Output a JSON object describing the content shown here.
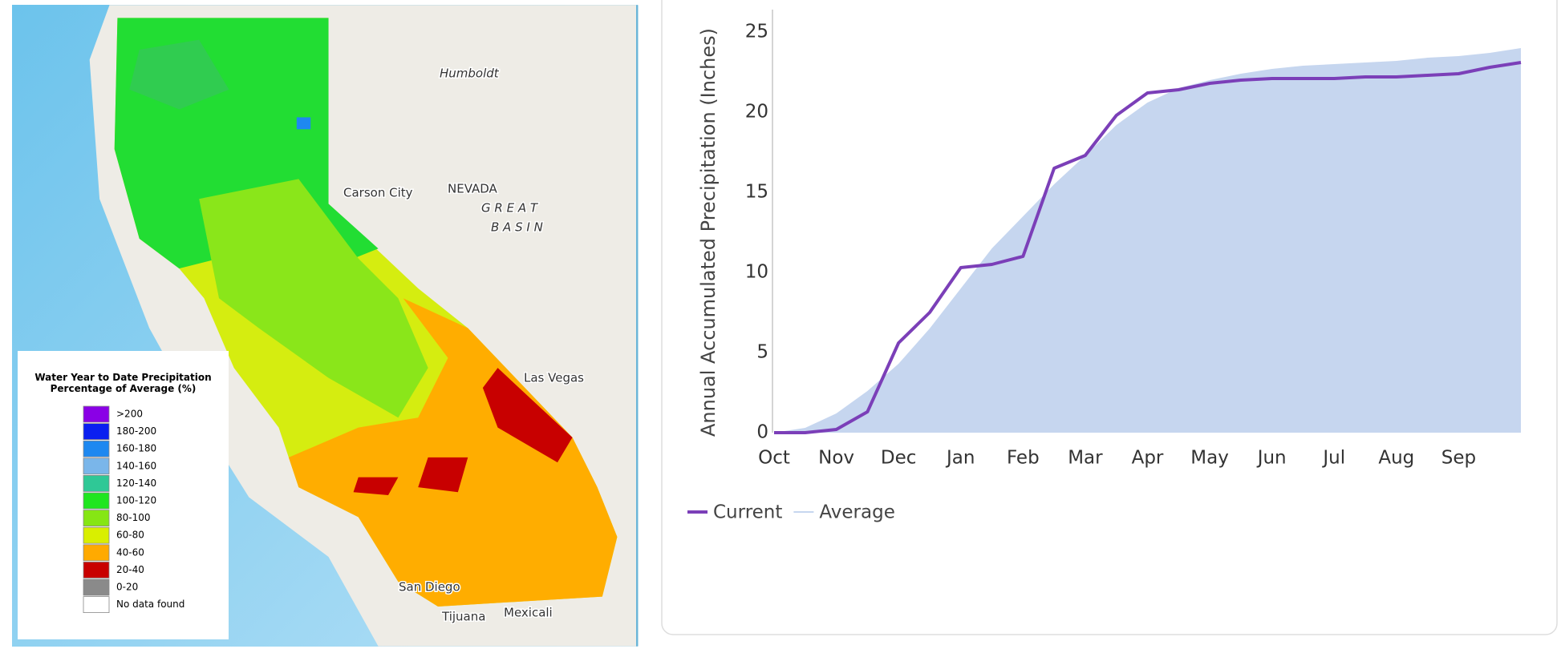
{
  "map": {
    "labels": [
      "Humboldt",
      "Carson City",
      "NEVADA",
      "G R E A T",
      "B A S I N",
      "Las Vegas",
      "San Diego",
      "Tijuana",
      "Mexicali"
    ],
    "legend": {
      "title": "Water Year to Date Precipitation Percentage of Average (%)",
      "items": [
        {
          "label": ">200",
          "color": "#8a00e6"
        },
        {
          "label": "180-200",
          "color": "#0a1ff0"
        },
        {
          "label": "160-180",
          "color": "#1e88f0"
        },
        {
          "label": "140-160",
          "color": "#7ab6ea"
        },
        {
          "label": "120-140",
          "color": "#2fc896"
        },
        {
          "label": "100-120",
          "color": "#1fe61f"
        },
        {
          "label": "80-100",
          "color": "#86e614"
        },
        {
          "label": "60-80",
          "color": "#d9ef00"
        },
        {
          "label": "40-60",
          "color": "#ffaa00"
        },
        {
          "label": "20-40",
          "color": "#c80000"
        },
        {
          "label": "0-20",
          "color": "#8a8a8a"
        },
        {
          "label": "No data found",
          "color": "#ffffff"
        }
      ]
    }
  },
  "chart_data": {
    "type": "line",
    "y_label": "Annual Accumulated Precipitation (Inches)",
    "categories": [
      "Oct",
      null,
      "Nov",
      null,
      "Dec",
      null,
      "Jan",
      null,
      "Feb",
      null,
      "Mar",
      null,
      "Apr",
      null,
      "May",
      null,
      "Jun",
      null,
      "Jul",
      null,
      "Aug",
      null,
      "Sep",
      null,
      null
    ],
    "series": [
      {
        "name": "Current",
        "color": "#7b3fb8",
        "style": "line",
        "values": [
          0,
          0,
          0.2,
          1.3,
          5.6,
          7.5,
          10.3,
          10.5,
          11,
          16.5,
          17.3,
          19.8,
          21.2,
          21.4,
          21.8,
          22.0,
          22.1,
          22.1,
          22.1,
          22.2,
          22.2,
          22.3,
          22.4,
          22.8,
          23.1
        ]
      },
      {
        "name": "Average",
        "color": "#c6d6ef",
        "style": "area",
        "values": [
          0,
          0.3,
          1.2,
          2.6,
          4.3,
          6.5,
          9,
          11.5,
          13.5,
          15.5,
          17.3,
          19.2,
          20.6,
          21.5,
          22.0,
          22.4,
          22.7,
          22.9,
          23.0,
          23.1,
          23.2,
          23.4,
          23.5,
          23.7,
          24.0
        ]
      }
    ],
    "ylim": [
      0,
      26.3
    ],
    "yticks": [
      0,
      5,
      10,
      15,
      20,
      25
    ],
    "grid": false
  }
}
